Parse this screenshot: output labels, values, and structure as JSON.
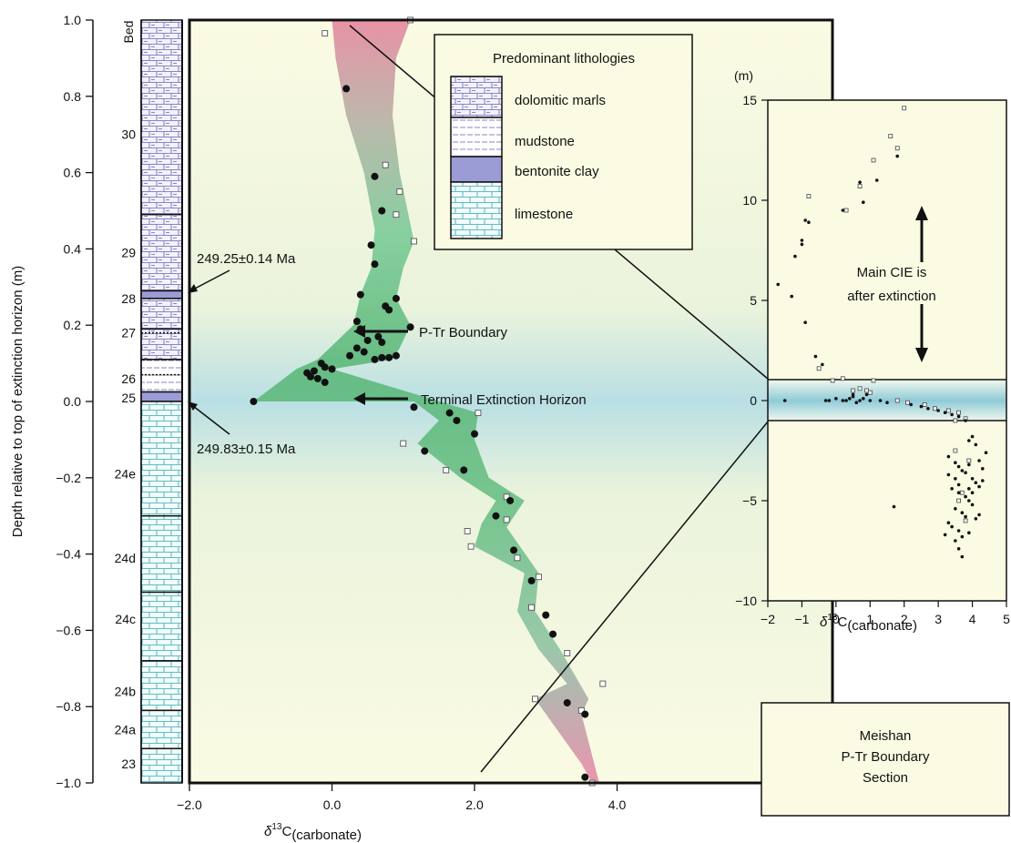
{
  "chart_data": [
    {
      "type": "scatter",
      "ylabel": "Depth relative to top of extinction horizon (m)",
      "xlabel": {
        "main": "δ",
        "sup": "13",
        "rest": "C",
        "sub": "(carbonate)"
      },
      "xlim": [
        -2.0,
        5.3
      ],
      "ylim": [
        -1.0,
        1.0
      ],
      "x_ticks": [
        -2.0,
        0.0,
        2.0,
        4.0
      ],
      "x_tick_labels": [
        "−2.0",
        "0.0",
        "2.0",
        "4.0"
      ],
      "y_ticks": [
        -1.0,
        -0.8,
        -0.6,
        -0.4,
        -0.2,
        0.0,
        0.2,
        0.4,
        0.6,
        0.8,
        1.0
      ],
      "y_tick_labels": [
        "−1.0",
        "−0.8",
        "−0.6",
        "−0.4",
        "−0.2",
        "0.0",
        "0.2",
        "0.4",
        "0.6",
        "0.8",
        "1.0"
      ],
      "column_header": "Bed",
      "beds": [
        {
          "name": "30",
          "y": 0.7
        },
        {
          "name": "29",
          "y": 0.39
        },
        {
          "name": "28",
          "y": 0.27
        },
        {
          "name": "27",
          "y": 0.18
        },
        {
          "name": "26",
          "y": 0.06
        },
        {
          "name": "25",
          "y": 0.01
        },
        {
          "name": "24e",
          "y": -0.19
        },
        {
          "name": "24d",
          "y": -0.41
        },
        {
          "name": "24c",
          "y": -0.57
        },
        {
          "name": "24b",
          "y": -0.76
        },
        {
          "name": "24a",
          "y": -0.86
        },
        {
          "name": "23",
          "y": -0.95
        }
      ],
      "column_units": [
        {
          "top": 1.0,
          "bottom": 0.49,
          "lith": "dolomitic marls"
        },
        {
          "top": 0.49,
          "bottom": 0.29,
          "lith": "dolomitic marls"
        },
        {
          "top": 0.29,
          "bottom": 0.27,
          "lith": "bentonite clay"
        },
        {
          "top": 0.27,
          "bottom": 0.19,
          "lith": "dolomitic marls"
        },
        {
          "top": 0.19,
          "bottom": 0.11,
          "lith": "dolomitic marls"
        },
        {
          "top": 0.11,
          "bottom": 0.025,
          "lith": "mudstone"
        },
        {
          "top": 0.025,
          "bottom": 0.0,
          "lith": "bentonite clay"
        },
        {
          "top": 0.0,
          "bottom": -0.3,
          "lith": "limestone"
        },
        {
          "top": -0.3,
          "bottom": -0.5,
          "lith": "limestone"
        },
        {
          "top": -0.5,
          "bottom": -0.68,
          "lith": "limestone"
        },
        {
          "top": -0.68,
          "bottom": -0.81,
          "lith": "limestone"
        },
        {
          "top": -0.81,
          "bottom": -0.91,
          "lith": "limestone"
        },
        {
          "top": -0.91,
          "bottom": -1.0,
          "lith": "limestone"
        }
      ],
      "dashed_boundaries": [
        0.18,
        0.07
      ],
      "band_left": [
        [
          0.0,
          1.0
        ],
        [
          0.05,
          0.9
        ],
        [
          0.2,
          0.75
        ],
        [
          0.45,
          0.6
        ],
        [
          0.6,
          0.45
        ],
        [
          0.55,
          0.35
        ],
        [
          0.4,
          0.28
        ],
        [
          0.3,
          0.2
        ],
        [
          -0.2,
          0.11
        ],
        [
          -0.5,
          0.085
        ],
        [
          -1.1,
          0.0
        ],
        [
          1.15,
          0.0
        ],
        [
          1.5,
          -0.05
        ],
        [
          1.2,
          -0.11
        ],
        [
          1.8,
          -0.2
        ],
        [
          2.3,
          -0.26
        ],
        [
          2.1,
          -0.32
        ],
        [
          2.0,
          -0.38
        ],
        [
          2.7,
          -0.45
        ],
        [
          2.6,
          -0.55
        ],
        [
          2.9,
          -0.65
        ],
        [
          3.3,
          -0.74
        ],
        [
          2.85,
          -0.78
        ],
        [
          3.5,
          -0.95
        ],
        [
          3.65,
          -1.0
        ]
      ],
      "band_right": [
        [
          1.1,
          1.0
        ],
        [
          0.9,
          0.9
        ],
        [
          0.85,
          0.75
        ],
        [
          0.95,
          0.6
        ],
        [
          1.15,
          0.42
        ],
        [
          1.0,
          0.35
        ],
        [
          0.9,
          0.27
        ],
        [
          1.1,
          0.2
        ],
        [
          0.95,
          0.14
        ],
        [
          0.85,
          0.11
        ],
        [
          0.5,
          0.1
        ],
        [
          0.0,
          0.085
        ],
        [
          2.05,
          -0.03
        ],
        [
          2.0,
          -0.1
        ],
        [
          2.2,
          -0.2
        ],
        [
          2.7,
          -0.26
        ],
        [
          2.45,
          -0.33
        ],
        [
          2.9,
          -0.45
        ],
        [
          2.85,
          -0.55
        ],
        [
          3.2,
          -0.65
        ],
        [
          3.6,
          -0.78
        ],
        [
          3.5,
          -0.82
        ],
        [
          3.75,
          -1.0
        ]
      ],
      "filled_points": [
        [
          0.2,
          0.82
        ],
        [
          0.6,
          0.59
        ],
        [
          0.7,
          0.5
        ],
        [
          0.55,
          0.41
        ],
        [
          0.6,
          0.36
        ],
        [
          0.4,
          0.28
        ],
        [
          0.75,
          0.25
        ],
        [
          0.9,
          0.27
        ],
        [
          1.1,
          0.195
        ],
        [
          0.8,
          0.24
        ],
        [
          0.35,
          0.21
        ],
        [
          0.4,
          0.19
        ],
        [
          0.5,
          0.16
        ],
        [
          0.65,
          0.17
        ],
        [
          0.7,
          0.155
        ],
        [
          0.35,
          0.14
        ],
        [
          0.45,
          0.13
        ],
        [
          0.25,
          0.12
        ],
        [
          0.6,
          0.11
        ],
        [
          0.7,
          0.115
        ],
        [
          0.8,
          0.115
        ],
        [
          0.9,
          0.12
        ],
        [
          -0.25,
          0.08
        ],
        [
          -0.15,
          0.1
        ],
        [
          -0.1,
          0.09
        ],
        [
          0.0,
          0.085
        ],
        [
          -0.35,
          0.075
        ],
        [
          -0.3,
          0.065
        ],
        [
          -0.2,
          0.06
        ],
        [
          -0.1,
          0.05
        ],
        [
          -1.1,
          0.0
        ],
        [
          1.15,
          -0.015
        ],
        [
          1.65,
          -0.03
        ],
        [
          1.75,
          -0.05
        ],
        [
          2.0,
          -0.085
        ],
        [
          1.3,
          -0.13
        ],
        [
          1.85,
          -0.18
        ],
        [
          2.5,
          -0.26
        ],
        [
          2.3,
          -0.3
        ],
        [
          2.55,
          -0.39
        ],
        [
          2.8,
          -0.47
        ],
        [
          3.0,
          -0.56
        ],
        [
          3.1,
          -0.61
        ],
        [
          3.3,
          -0.79
        ],
        [
          3.55,
          -0.82
        ],
        [
          3.55,
          -0.985
        ]
      ],
      "open_points": [
        [
          1.1,
          1.0
        ],
        [
          -0.1,
          0.965
        ],
        [
          0.75,
          0.62
        ],
        [
          0.95,
          0.55
        ],
        [
          0.9,
          0.49
        ],
        [
          1.15,
          0.42
        ],
        [
          2.05,
          -0.03
        ],
        [
          1.0,
          -0.11
        ],
        [
          1.6,
          -0.18
        ],
        [
          2.45,
          -0.25
        ],
        [
          2.45,
          -0.31
        ],
        [
          1.9,
          -0.34
        ],
        [
          1.95,
          -0.38
        ],
        [
          2.6,
          -0.41
        ],
        [
          2.9,
          -0.46
        ],
        [
          2.8,
          -0.54
        ],
        [
          3.3,
          -0.66
        ],
        [
          3.8,
          -0.74
        ],
        [
          2.85,
          -0.78
        ],
        [
          3.5,
          -0.81
        ],
        [
          3.65,
          -1.0
        ]
      ],
      "annotations": [
        {
          "text": "249.25±0.14 Ma",
          "x": -2.0,
          "y": 0.37
        },
        {
          "text": "249.83±0.15 Ma",
          "x": -2.0,
          "y": -0.12
        },
        {
          "text": "P-Tr Boundary",
          "x": 2.6,
          "y": 0.18
        },
        {
          "text": "Terminal Extinction Horizon",
          "x": 2.6,
          "y": 0.0
        }
      ]
    },
    {
      "type": "scatter",
      "ylabel": "(m)",
      "xlabel": {
        "main": "δ",
        "sup": "13",
        "rest": "C",
        "sub": "(carbonate)"
      },
      "xlim": [
        -2,
        5
      ],
      "ylim": [
        -10,
        15
      ],
      "x_ticks": [
        -2,
        -1,
        0,
        1,
        2,
        3,
        4,
        5
      ],
      "x_tick_labels": [
        "−2",
        "−1",
        "0",
        "1",
        "2",
        "3",
        "4",
        "5"
      ],
      "y_ticks": [
        -10,
        -5,
        0,
        5,
        10,
        15
      ],
      "y_tick_labels": [
        "−10",
        "−5",
        "0",
        "5",
        "10",
        "15"
      ],
      "zoom_band": [
        -1,
        1
      ],
      "annotation": {
        "lines": [
          "Main CIE is",
          "after extinction"
        ]
      },
      "filled_points": [
        [
          -1.7,
          5.8
        ],
        [
          -1.3,
          5.2
        ],
        [
          -1.2,
          7.2
        ],
        [
          -1.0,
          8.0
        ],
        [
          -1.0,
          7.8
        ],
        [
          -0.9,
          9.0
        ],
        [
          -0.8,
          8.9
        ],
        [
          -0.9,
          3.9
        ],
        [
          -0.6,
          2.2
        ],
        [
          -0.4,
          1.8
        ],
        [
          0.2,
          9.5
        ],
        [
          0.7,
          10.9
        ],
        [
          0.8,
          9.9
        ],
        [
          1.2,
          11.0
        ],
        [
          1.8,
          12.2
        ],
        [
          -1.5,
          0.0
        ],
        [
          -0.3,
          0.0
        ],
        [
          -0.2,
          0.0
        ],
        [
          0.0,
          0.1
        ],
        [
          0.2,
          0.0
        ],
        [
          0.4,
          0.1
        ],
        [
          0.5,
          0.2
        ],
        [
          0.6,
          -0.1
        ],
        [
          0.7,
          0.0
        ],
        [
          0.8,
          0.1
        ],
        [
          0.9,
          0.3
        ],
        [
          1.0,
          0.0
        ],
        [
          1.3,
          0.0
        ],
        [
          1.5,
          -0.1
        ],
        [
          2.2,
          -0.2
        ],
        [
          2.5,
          -0.3
        ],
        [
          2.7,
          -0.4
        ],
        [
          3.0,
          -0.5
        ],
        [
          3.2,
          -0.6
        ],
        [
          3.4,
          -0.7
        ],
        [
          3.6,
          -0.8
        ],
        [
          3.8,
          -1.0
        ],
        [
          0.5,
          0.3
        ],
        [
          0.3,
          0.0
        ],
        [
          1.7,
          -5.3
        ],
        [
          3.3,
          -2.8
        ],
        [
          3.5,
          -3.1
        ],
        [
          3.6,
          -3.3
        ],
        [
          3.7,
          -3.5
        ],
        [
          3.8,
          -3.6
        ],
        [
          3.9,
          -3.2
        ],
        [
          4.0,
          -3.9
        ],
        [
          4.1,
          -4.1
        ],
        [
          4.2,
          -4.3
        ],
        [
          3.4,
          -4.4
        ],
        [
          3.6,
          -4.6
        ],
        [
          3.8,
          -4.8
        ],
        [
          3.9,
          -5.0
        ],
        [
          4.0,
          -5.2
        ],
        [
          3.5,
          -5.4
        ],
        [
          3.7,
          -5.6
        ],
        [
          3.8,
          -5.8
        ],
        [
          4.1,
          -5.9
        ],
        [
          4.2,
          -5.7
        ],
        [
          3.4,
          -6.3
        ],
        [
          3.6,
          -6.5
        ],
        [
          3.7,
          -6.8
        ],
        [
          3.9,
          -6.6
        ],
        [
          3.5,
          -7.0
        ],
        [
          3.6,
          -7.4
        ],
        [
          3.7,
          -7.8
        ],
        [
          3.3,
          -6.1
        ],
        [
          3.2,
          -6.7
        ],
        [
          4.3,
          -4.0
        ],
        [
          4.4,
          -2.6
        ],
        [
          4.0,
          -1.8
        ],
        [
          4.1,
          -2.2
        ],
        [
          3.9,
          -2.0
        ],
        [
          4.2,
          -3.0
        ],
        [
          4.3,
          -3.4
        ],
        [
          3.9,
          -4.4
        ],
        [
          4.0,
          -4.6
        ],
        [
          3.5,
          -3.9
        ],
        [
          3.6,
          -4.2
        ],
        [
          3.3,
          -3.7
        ]
      ],
      "open_points": [
        [
          2.0,
          14.6
        ],
        [
          1.6,
          13.2
        ],
        [
          1.8,
          12.6
        ],
        [
          1.1,
          12.0
        ],
        [
          0.7,
          10.7
        ],
        [
          0.3,
          9.5
        ],
        [
          -0.8,
          10.2
        ],
        [
          -0.5,
          1.6
        ],
        [
          -0.1,
          1.0
        ],
        [
          0.2,
          1.1
        ],
        [
          1.1,
          1.0
        ],
        [
          0.5,
          0.5
        ],
        [
          0.7,
          0.6
        ],
        [
          0.9,
          0.5
        ],
        [
          1.0,
          0.4
        ],
        [
          1.8,
          0.0
        ],
        [
          2.1,
          -0.1
        ],
        [
          2.6,
          -0.2
        ],
        [
          2.9,
          -0.4
        ],
        [
          3.3,
          -0.5
        ],
        [
          3.6,
          -0.6
        ],
        [
          3.8,
          -0.9
        ],
        [
          3.5,
          -1.0
        ],
        [
          3.5,
          -2.5
        ],
        [
          3.9,
          -3.0
        ],
        [
          3.7,
          -4.6
        ],
        [
          3.6,
          -5.0
        ],
        [
          3.8,
          -6.0
        ]
      ]
    }
  ],
  "legend": {
    "title": "Predominant lithologies",
    "items": [
      {
        "pattern": "dolomitic-marls-pattern",
        "label": "dolomitic marls"
      },
      {
        "pattern": "mudstone-pattern",
        "label": "mudstone"
      },
      {
        "pattern": "bentonite-pattern",
        "label": "bentonite clay"
      },
      {
        "pattern": "limestone-pattern",
        "label": "limestone"
      }
    ]
  },
  "caption_box": {
    "lines": [
      "Meishan",
      "P-Tr Boundary",
      "Section"
    ]
  },
  "colors": {
    "marl": "#8a86c6",
    "limestone": "#5cbfc6",
    "bentonite": "#9b9bd6",
    "band_top": "#e08aa0",
    "band_mid": "#5cb87a",
    "panel_bg": "#fbfbe3",
    "panel_teal": "#b6dde3"
  }
}
